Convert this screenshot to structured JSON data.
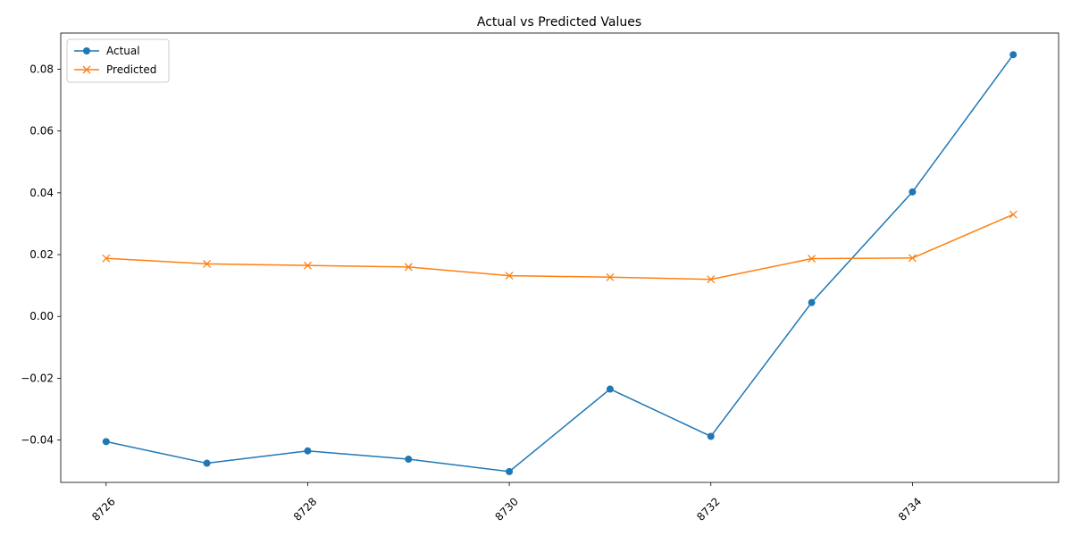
{
  "chart_data": {
    "type": "line",
    "title": "Actual vs Predicted Values",
    "xlabel": "",
    "ylabel": "",
    "x": [
      8726,
      8727,
      8728,
      8729,
      8730,
      8731,
      8732,
      8733,
      8734,
      8735
    ],
    "xlim": [
      8725.55,
      8735.45
    ],
    "ylim": [
      -0.0537,
      0.0917
    ],
    "x_ticks": [
      8726,
      8728,
      8730,
      8732,
      8734
    ],
    "y_ticks": [
      -0.04,
      -0.02,
      0.0,
      0.02,
      0.04,
      0.06,
      0.08
    ],
    "y_tick_labels": [
      "−0.04",
      "−0.02",
      "0.00",
      "0.02",
      "0.04",
      "0.06",
      "0.08"
    ],
    "grid": false,
    "legend_position": "top-left",
    "series": [
      {
        "name": "Actual",
        "color": "#1f77b4",
        "marker": "circle",
        "values": [
          -0.0405,
          -0.0475,
          -0.0435,
          -0.0462,
          -0.0502,
          -0.0235,
          -0.0388,
          0.0045,
          0.0403,
          0.0847
        ]
      },
      {
        "name": "Predicted",
        "color": "#ff7f0e",
        "marker": "x",
        "values": [
          0.0188,
          0.017,
          0.0165,
          0.016,
          0.0132,
          0.0127,
          0.012,
          0.0187,
          0.0189,
          0.033
        ]
      }
    ]
  }
}
